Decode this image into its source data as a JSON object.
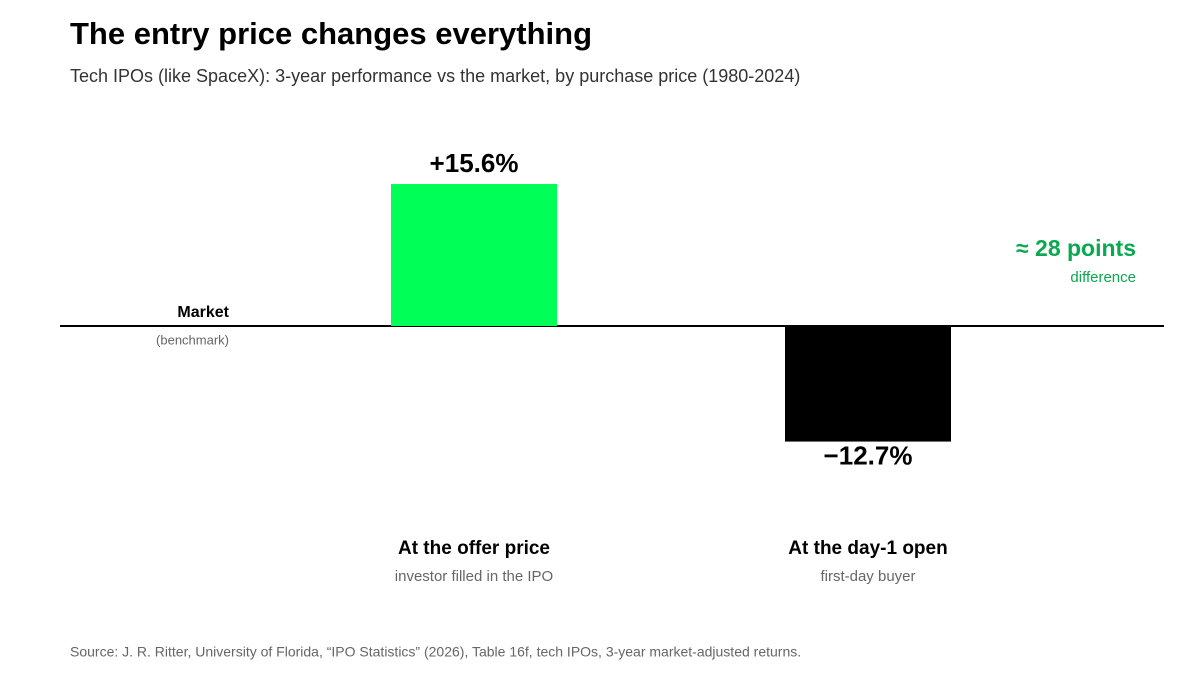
{
  "chart_data": {
    "type": "bar",
    "title": "The entry price changes everything",
    "subtitle": "Tech IPOs (like SpaceX): 3-year performance vs the market, by purchase price (1980-2024)",
    "categories": [
      "At the offer price",
      "At the day-1 open"
    ],
    "category_notes": [
      "investor filled in the IPO",
      "first-day buyer"
    ],
    "values": [
      15.6,
      -12.7
    ],
    "value_labels": [
      "+15.6%",
      "−12.7%"
    ],
    "colors": [
      "#00ff57",
      "#000000"
    ],
    "baseline_label": "Market",
    "baseline_note": "(benchmark)",
    "annotation": "≈ 28 points",
    "annotation_note": "difference",
    "annotation_color": "#0aa84f",
    "source": "Source: J. R. Ritter, University of Florida, “IPO Statistics” (2026), Table 16f, tech IPOs, 3-year market-adjusted returns."
  }
}
